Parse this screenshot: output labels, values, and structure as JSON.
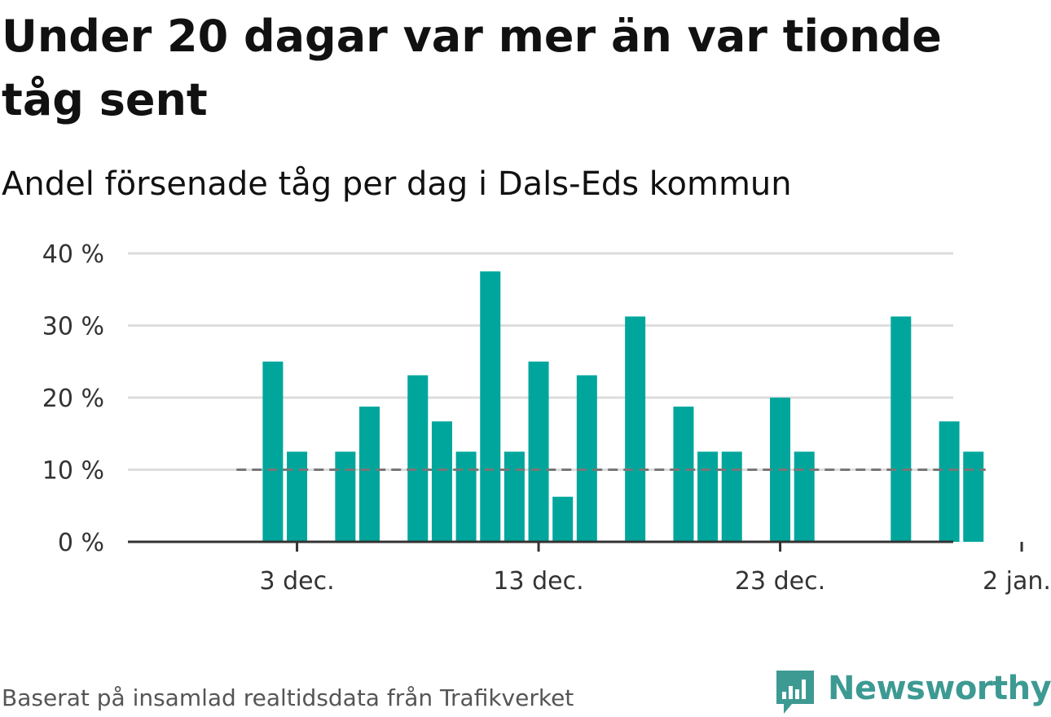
{
  "title": "Under 20 dagar var mer än var tionde tåg sent",
  "subtitle": "Andel försenade tåg per dag i Dals-Eds kommun",
  "source": "Baserat på insamlad realtidsdata från Trafikverket",
  "brand": {
    "name": "Newsworthy",
    "icon": "newsworthy-logo-icon"
  },
  "colors": {
    "bar": "#00a69c",
    "grid": "#dddddd",
    "axis": "#333333",
    "reference": "#777777",
    "brand": "#3d9a93"
  },
  "chart_data": {
    "type": "bar",
    "x": [
      "2023-12-01",
      "2023-12-02",
      "2023-12-03",
      "2023-12-04",
      "2023-12-05",
      "2023-12-06",
      "2023-12-07",
      "2023-12-08",
      "2023-12-09",
      "2023-12-10",
      "2023-12-11",
      "2023-12-12",
      "2023-12-13",
      "2023-12-14",
      "2023-12-15",
      "2023-12-16",
      "2023-12-17",
      "2023-12-18",
      "2023-12-19",
      "2023-12-20",
      "2023-12-21",
      "2023-12-22",
      "2023-12-23",
      "2023-12-24",
      "2023-12-25",
      "2023-12-26",
      "2023-12-27",
      "2023-12-28",
      "2023-12-29",
      "2023-12-30",
      "2023-12-31"
    ],
    "values": [
      0,
      25,
      12.5,
      0,
      12.5,
      18.75,
      0,
      23.1,
      16.7,
      12.5,
      37.5,
      12.5,
      25,
      6.25,
      23.1,
      0,
      31.25,
      0,
      18.75,
      12.5,
      12.5,
      0,
      20,
      12.5,
      0,
      0,
      0,
      31.25,
      0,
      16.7,
      12.5
    ],
    "reference_line": 10,
    "ylim": [
      0,
      40
    ],
    "y_ticks": [
      0,
      10,
      20,
      30,
      40
    ],
    "y_tick_labels": [
      "0 %",
      "10 %",
      "20 %",
      "30 %",
      "40 %"
    ],
    "x_ticks": [
      "2023-12-03",
      "2023-12-13",
      "2023-12-23",
      "2024-01-02"
    ],
    "x_tick_labels": [
      "3 dec.",
      "13 dec.",
      "23 dec.",
      "2 jan."
    ],
    "xlabel": "",
    "ylabel": "",
    "grid": true,
    "legend": "none"
  }
}
